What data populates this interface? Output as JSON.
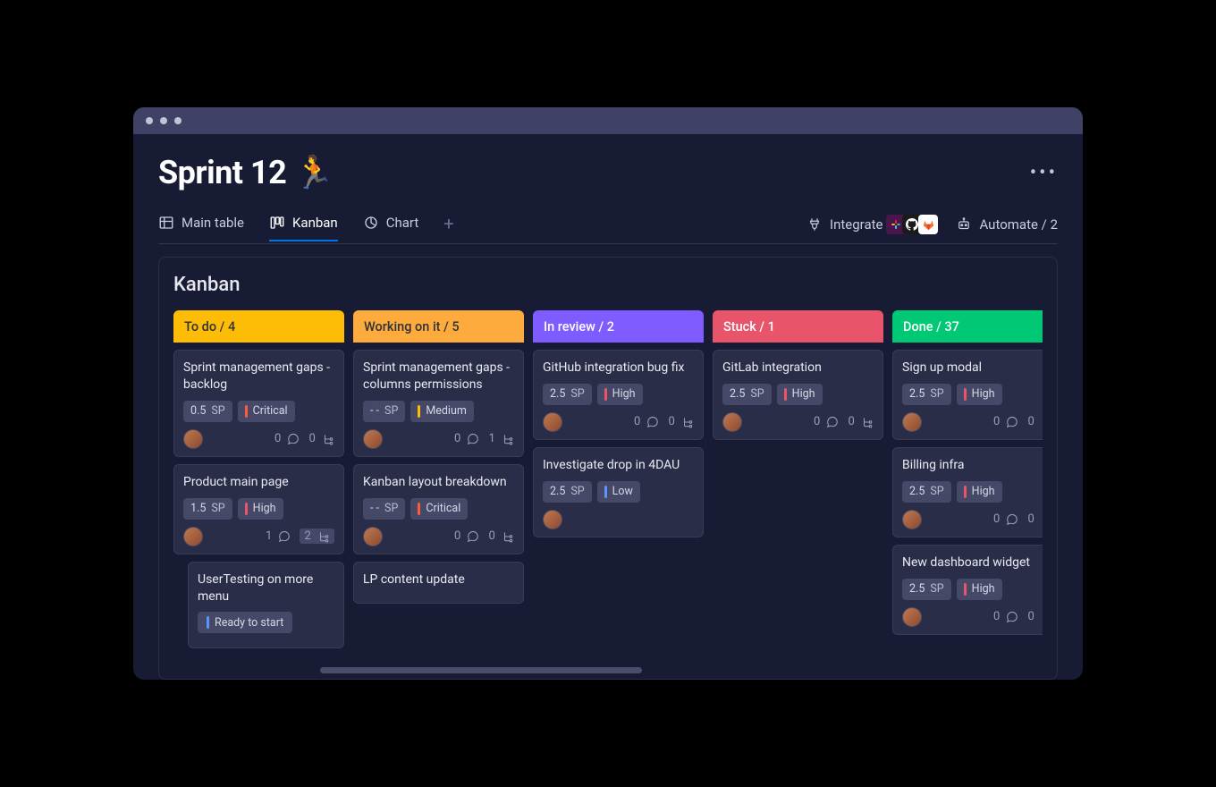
{
  "header": {
    "title": "Sprint 12 🏃",
    "more_label": "•••"
  },
  "tabs": {
    "main_table": "Main table",
    "kanban": "Kanban",
    "chart": "Chart",
    "add": "+"
  },
  "toolbar": {
    "integrate_label": "Integrate",
    "automate_label": "Automate / 2"
  },
  "board": {
    "title": "Kanban"
  },
  "colors": {
    "todo": "#fdbc05",
    "working": "#fdab3d",
    "review": "#7f5cff",
    "stuck": "#e8556b",
    "done": "#00c875",
    "critical_bar": "#ff5b3a",
    "high_bar": "#e8556b",
    "medium_bar": "#fdbc05",
    "low_bar": "#5c93ff",
    "ready_bar": "#5c93ff"
  },
  "columns": [
    {
      "id": "todo",
      "label": "To do / 4",
      "dark_text": true,
      "cards": [
        {
          "title": "Sprint management gaps - backlog",
          "sp": "0.5",
          "priority": "Critical",
          "priority_color": "critical_bar",
          "comments": 0,
          "subitems": 0
        },
        {
          "title": "Product main page",
          "sp": "1.5",
          "priority": "High",
          "priority_color": "high_bar",
          "comments": 1,
          "subitems": 2,
          "subitems_badge": true
        },
        {
          "title": "UserTesting on more menu",
          "status": "Ready to start",
          "status_color": "ready_bar",
          "indent": true,
          "no_sp": true
        }
      ]
    },
    {
      "id": "working",
      "label": "Working on it / 5",
      "dark_text": true,
      "cards": [
        {
          "title": "Sprint management gaps - columns permissions",
          "sp": "- -",
          "priority": "Medium",
          "priority_color": "medium_bar",
          "comments": 0,
          "subitems": 1
        },
        {
          "title": "Kanban layout breakdown",
          "sp": "- -",
          "priority": "Critical",
          "priority_color": "critical_bar",
          "comments": 0,
          "subitems": 0
        },
        {
          "title": "LP content update",
          "no_chips": true
        }
      ]
    },
    {
      "id": "review",
      "label": "In review / 2",
      "cards": [
        {
          "title": "GitHub integration bug fix",
          "sp": "2.5",
          "priority": "High",
          "priority_color": "high_bar",
          "comments": 0,
          "subitems": 0
        },
        {
          "title": "Investigate drop in 4DAU",
          "sp": "2.5",
          "priority": "Low",
          "priority_color": "low_bar",
          "no_footer_stats": true
        }
      ]
    },
    {
      "id": "stuck",
      "label": "Stuck / 1",
      "cards": [
        {
          "title": "GitLab integration",
          "sp": "2.5",
          "priority": "High",
          "priority_color": "high_bar",
          "comments": 0,
          "subitems": 0
        }
      ]
    },
    {
      "id": "done",
      "label": "Done  / 37",
      "cards": [
        {
          "title": "Sign up modal",
          "sp": "2.5",
          "priority": "High",
          "priority_color": "high_bar",
          "comments": 0,
          "subitems": 0
        },
        {
          "title": "Billing infra",
          "sp": "2.5",
          "priority": "High",
          "priority_color": "high_bar",
          "comments": 0,
          "subitems": 0
        },
        {
          "title": "New dashboard widget",
          "sp": "2.5",
          "priority": "High",
          "priority_color": "high_bar",
          "comments": 0,
          "subitems": 0
        }
      ]
    }
  ]
}
